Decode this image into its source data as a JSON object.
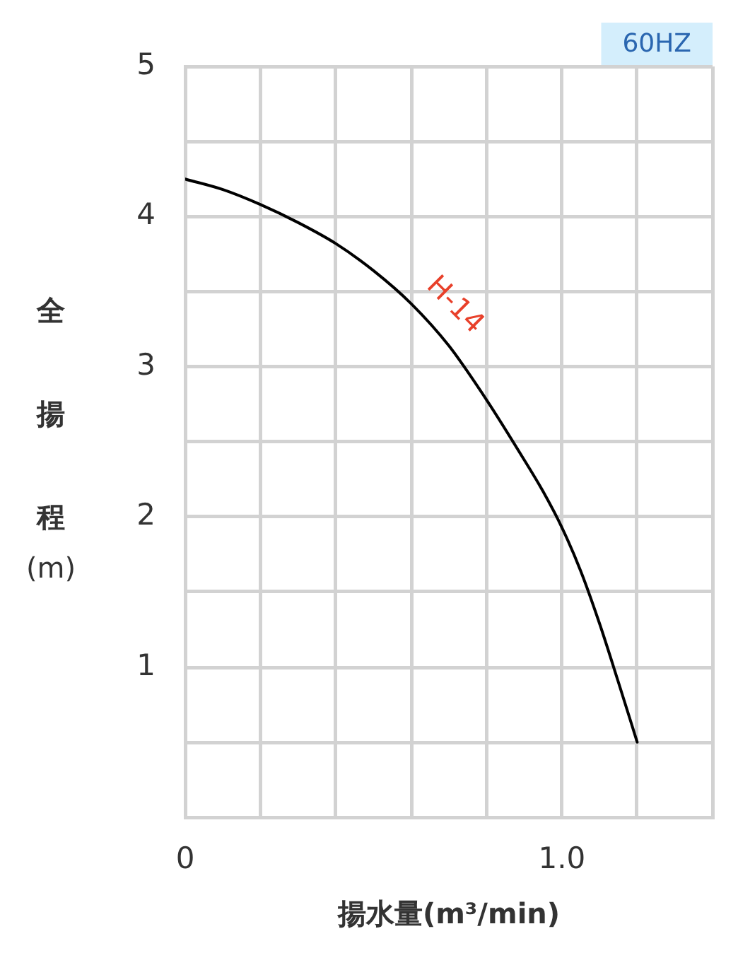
{
  "chart_data": {
    "type": "line",
    "xlabel": "揚水量(m³/min)",
    "ylabel": "全揚程(m)",
    "annotations": [
      "60HZ"
    ],
    "x": [
      0,
      0.1,
      0.2,
      0.3,
      0.4,
      0.5,
      0.6,
      0.7,
      0.8,
      0.9,
      0.95,
      1.0,
      1.05,
      1.1,
      1.15,
      1.2
    ],
    "series": [
      {
        "name": "H-14",
        "color": "#000000",
        "values": [
          4.25,
          4.18,
          4.08,
          3.96,
          3.82,
          3.64,
          3.42,
          3.14,
          2.78,
          2.38,
          2.17,
          1.93,
          1.64,
          1.29,
          0.9,
          0.5
        ]
      }
    ],
    "xlim": [
      0,
      1.4
    ],
    "xticks": [
      {
        "value": 0,
        "label": "0"
      },
      {
        "value": 0.2,
        "label": null
      },
      {
        "value": 0.4,
        "label": null
      },
      {
        "value": 0.6,
        "label": null
      },
      {
        "value": 0.8,
        "label": null
      },
      {
        "value": 1.0,
        "label": "1.0"
      },
      {
        "value": 1.2,
        "label": null
      },
      {
        "value": 1.4,
        "label": null
      }
    ],
    "ylim": [
      0,
      5
    ],
    "yticks": [
      {
        "value": 0,
        "label": null
      },
      {
        "value": 0.5,
        "label": null
      },
      1,
      {
        "value": 1.5,
        "label": null
      },
      2,
      {
        "value": 2.5,
        "label": null
      },
      3,
      {
        "value": 3.5,
        "label": null
      },
      4,
      {
        "value": 4.5,
        "label": null
      },
      5
    ],
    "grid": true,
    "line_style": "solid"
  }
}
